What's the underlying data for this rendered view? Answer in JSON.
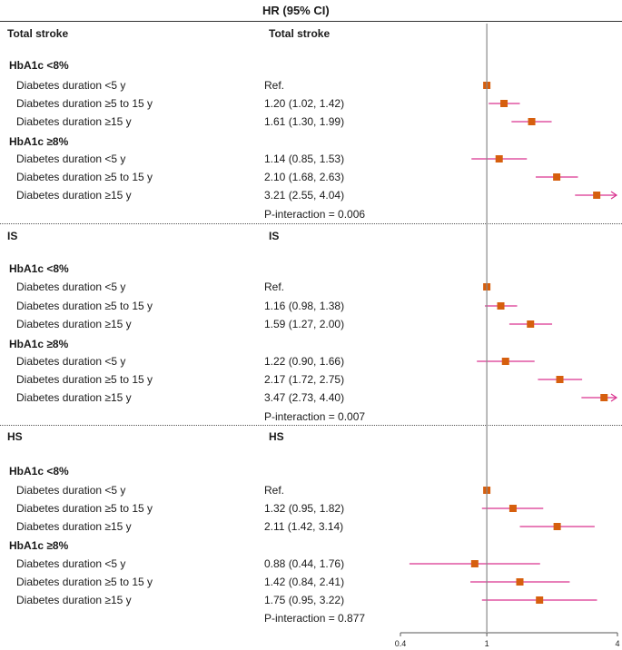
{
  "header": {
    "hr_label": "HR (95% CI)"
  },
  "colors": {
    "marker": "#d65f0e",
    "whisker": "#d9338f",
    "axis": "#555555"
  },
  "chart_data": {
    "type": "forest",
    "xscale": "log",
    "xlim": [
      0.4,
      4
    ],
    "xticks": [
      {
        "value": 0.4,
        "label": "0.4"
      },
      {
        "value": 1,
        "label": "1"
      },
      {
        "value": 4,
        "label": "4"
      }
    ],
    "reference_line": 1,
    "sections": [
      {
        "left_title": "Total stroke",
        "right_title": "Total stroke",
        "groups": [
          {
            "name": "HbA1c <8%",
            "rows": [
              {
                "label": "Diabetes duration <5 y",
                "text": "Ref.",
                "hr": 1,
                "lo": 1,
                "hi": 1
              },
              {
                "label": "Diabetes duration ≥5 to 15 y",
                "text": "1.20 (1.02, 1.42)",
                "hr": 1.2,
                "lo": 1.02,
                "hi": 1.42
              },
              {
                "label": "Diabetes duration ≥15 y",
                "text": "1.61 (1.30, 1.99)",
                "hr": 1.61,
                "lo": 1.3,
                "hi": 1.99
              }
            ]
          },
          {
            "name": "HbA1c ≥8%",
            "rows": [
              {
                "label": "Diabetes duration <5 y",
                "text": "1.14 (0.85, 1.53)",
                "hr": 1.14,
                "lo": 0.85,
                "hi": 1.53
              },
              {
                "label": "Diabetes duration ≥5 to 15 y",
                "text": "2.10 (1.68, 2.63)",
                "hr": 2.1,
                "lo": 1.68,
                "hi": 2.63
              },
              {
                "label": "Diabetes duration ≥15 y",
                "text": "3.21 (2.55, 4.04)",
                "hr": 3.21,
                "lo": 2.55,
                "hi": 4.04,
                "arrow": true
              }
            ]
          }
        ],
        "p_interaction": "P-interaction = 0.006"
      },
      {
        "left_title": "IS",
        "right_title": "IS",
        "groups": [
          {
            "name": "HbA1c <8%",
            "rows": [
              {
                "label": "Diabetes duration <5 y",
                "text": "Ref.",
                "hr": 1,
                "lo": 1,
                "hi": 1
              },
              {
                "label": "Diabetes duration ≥5 to 15 y",
                "text": "1.16 (0.98, 1.38)",
                "hr": 1.16,
                "lo": 0.98,
                "hi": 1.38
              },
              {
                "label": "Diabetes duration ≥15 y",
                "text": "1.59 (1.27, 2.00)",
                "hr": 1.59,
                "lo": 1.27,
                "hi": 2.0
              }
            ]
          },
          {
            "name": "HbA1c ≥8%",
            "rows": [
              {
                "label": "Diabetes duration <5 y",
                "text": "1.22 (0.90, 1.66)",
                "hr": 1.22,
                "lo": 0.9,
                "hi": 1.66
              },
              {
                "label": "Diabetes duration ≥5 to 15 y",
                "text": "2.17 (1.72, 2.75)",
                "hr": 2.17,
                "lo": 1.72,
                "hi": 2.75
              },
              {
                "label": "Diabetes duration ≥15 y",
                "text": "3.47 (2.73, 4.40)",
                "hr": 3.47,
                "lo": 2.73,
                "hi": 4.4,
                "arrow": true
              }
            ]
          }
        ],
        "p_interaction": "P-interaction = 0.007"
      },
      {
        "left_title": "HS",
        "right_title": "HS",
        "groups": [
          {
            "name": "HbA1c <8%",
            "rows": [
              {
                "label": "Diabetes duration <5 y",
                "text": "Ref.",
                "hr": 1,
                "lo": 1,
                "hi": 1
              },
              {
                "label": "Diabetes duration ≥5 to 15 y",
                "text": "1.32 (0.95, 1.82)",
                "hr": 1.32,
                "lo": 0.95,
                "hi": 1.82
              },
              {
                "label": "Diabetes duration ≥15 y",
                "text": "2.11 (1.42, 3.14)",
                "hr": 2.11,
                "lo": 1.42,
                "hi": 3.14
              }
            ]
          },
          {
            "name": "HbA1c ≥8%",
            "rows": [
              {
                "label": "Diabetes duration <5 y",
                "text": "0.88 (0.44, 1.76)",
                "hr": 0.88,
                "lo": 0.44,
                "hi": 1.76
              },
              {
                "label": "Diabetes duration ≥5 to 15 y",
                "text": "1.42 (0.84, 2.41)",
                "hr": 1.42,
                "lo": 0.84,
                "hi": 2.41
              },
              {
                "label": "Diabetes duration ≥15 y",
                "text": "1.75 (0.95, 3.22)",
                "hr": 1.75,
                "lo": 0.95,
                "hi": 3.22
              }
            ]
          }
        ],
        "p_interaction": "P-interaction = 0.877"
      }
    ]
  }
}
